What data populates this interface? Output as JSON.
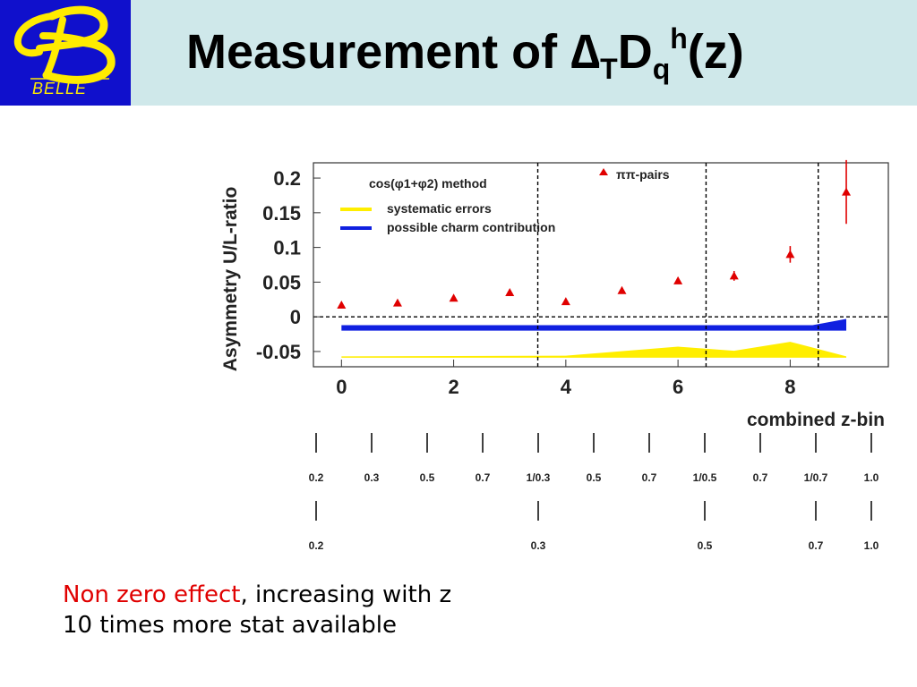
{
  "header": {
    "logo_caption": "BELLE",
    "title_prefix": "Measurement of ",
    "title_delta": "∆",
    "title_sub_T": "T",
    "title_D": "D",
    "title_sub_q": "q",
    "title_sup_h": "h",
    "title_suffix": "(z)",
    "colors": {
      "header_bg": "#cfe8ea",
      "logo_bg": "#1010cc",
      "logo_fg": "#ffeb00"
    }
  },
  "chart_data": {
    "type": "scatter",
    "ylabel": "Asymmetry U/L-ratio",
    "xlabel": "combined z-bin",
    "xlim": [
      -0.5,
      9.75
    ],
    "ylim": [
      -0.072,
      0.222
    ],
    "x_ticks": [
      0,
      2,
      4,
      6,
      8
    ],
    "y_ticks": [
      {
        "value": 0.2,
        "label": "0.2"
      },
      {
        "value": 0.15,
        "label": "0.15"
      },
      {
        "value": 0.1,
        "label": "0.1"
      },
      {
        "value": 0.05,
        "label": "0.05"
      },
      {
        "value": 0,
        "label": "0"
      },
      {
        "value": -0.05,
        "label": "-0.05"
      }
    ],
    "method_label": "cos(φ1+φ2) method",
    "series": [
      {
        "name": "ππ-pairs",
        "color": "#e00000",
        "marker": "triangle",
        "x": [
          0,
          1,
          2,
          3,
          4,
          5,
          6,
          7,
          8,
          9
        ],
        "y": [
          0.017,
          0.02,
          0.027,
          0.035,
          0.022,
          0.038,
          0.052,
          0.059,
          0.09,
          0.18
        ],
        "err": [
          0.002,
          0.002,
          0.002,
          0.003,
          0.003,
          0.003,
          0.004,
          0.007,
          0.012,
          0.046
        ]
      }
    ],
    "bands": [
      {
        "name": "systematic errors",
        "color": "#ffee00",
        "x": [
          0,
          4,
          6,
          7,
          8,
          9
        ],
        "lower": [
          -0.059,
          -0.059,
          -0.059,
          -0.059,
          -0.059,
          -0.059
        ],
        "upper": [
          -0.057,
          -0.056,
          -0.043,
          -0.049,
          -0.036,
          -0.057
        ]
      },
      {
        "name": "possible charm contribution",
        "color": "#1020e0",
        "x": [
          0,
          8.4,
          9
        ],
        "lower": [
          -0.02,
          -0.02,
          -0.02
        ],
        "upper": [
          -0.012,
          -0.012,
          -0.003
        ]
      }
    ],
    "dashed_lines_x": [
      3.5,
      6.5,
      8.5
    ],
    "zero_line": true,
    "scale1": {
      "ticks": [
        0,
        1,
        2,
        3,
        4,
        5,
        6,
        7,
        8,
        9,
        10
      ],
      "labels": [
        "0.2",
        "0.3",
        "0.5",
        "0.7",
        "1/0.3",
        "0.5",
        "0.7",
        "1/0.5",
        "0.7",
        "1/0.7",
        "1.0"
      ]
    },
    "scale2": {
      "ticks": [
        0,
        4,
        7,
        9,
        10
      ],
      "labels": [
        "0.2",
        "0.3",
        "0.5",
        "0.7",
        "1.0"
      ]
    }
  },
  "notes": {
    "line1_highlight": "Non zero effect",
    "line1_rest": ", increasing with z",
    "line2": "10 times more stat available"
  }
}
